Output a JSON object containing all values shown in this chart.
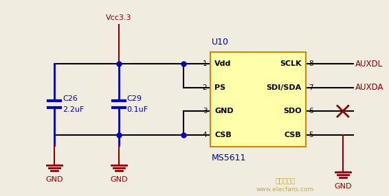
{
  "bg_color": "#f0ede0",
  "wire_color_blue": "#0000bb",
  "wire_color_black": "#000000",
  "wire_color_red": "#8b0000",
  "ic_fill": "#ffffaa",
  "ic_border": "#cc8800",
  "label_blue": "#0000aa",
  "label_red": "#8b0000",
  "watermark_color": "#b8963c",
  "pin_labels_left": [
    "Vdd",
    "PS",
    "GND",
    "CSB"
  ],
  "pin_labels_right": [
    "SCLK",
    "SDI/SDA",
    "SDO",
    "CSB"
  ],
  "pin_numbers_left": [
    "1",
    "2",
    "3",
    "4"
  ],
  "pin_numbers_right": [
    "8",
    "7",
    "6",
    "5"
  ]
}
